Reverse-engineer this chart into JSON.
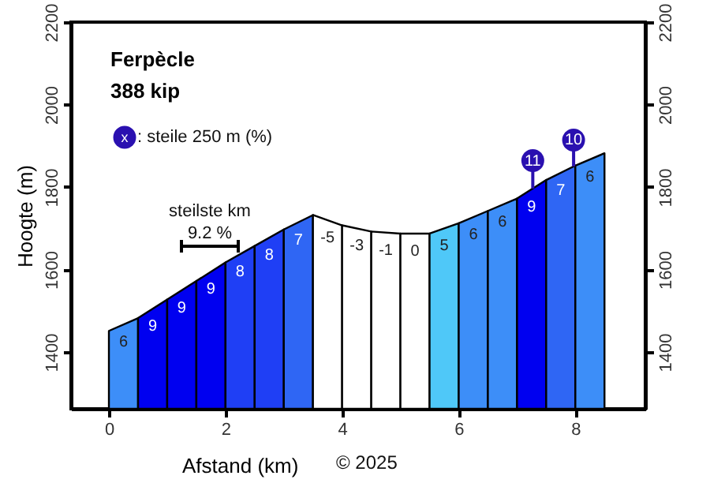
{
  "chart_data": {
    "type": "area",
    "title": "Ferpècle",
    "subtitle": "388 kip",
    "xlabel": "Afstand (km)",
    "ylabel": "Hoogte (m)",
    "series": [
      {
        "x": [
          0,
          0.5
        ],
        "values": [
          1451,
          1482
        ],
        "color": "#3d8ef8",
        "name": "6"
      },
      {
        "x": [
          0.5,
          1
        ],
        "values": [
          1482,
          1527
        ],
        "color": "#0000f0",
        "name": "9"
      },
      {
        "x": [
          1,
          1.5
        ],
        "values": [
          1527,
          1572
        ],
        "color": "#0000f0",
        "name": "9"
      },
      {
        "x": [
          1.5,
          2
        ],
        "values": [
          1572,
          1617
        ],
        "color": "#0000f0",
        "name": "9"
      },
      {
        "x": [
          2,
          2.5
        ],
        "values": [
          1617,
          1657
        ],
        "color": "#1f3ff5",
        "name": "8"
      },
      {
        "x": [
          2.5,
          3
        ],
        "values": [
          1657,
          1697
        ],
        "color": "#1f3ff5",
        "name": "8"
      },
      {
        "x": [
          3,
          3.5
        ],
        "values": [
          1697,
          1732
        ],
        "color": "#2f66f4",
        "name": "7"
      },
      {
        "x": [
          3.5,
          4
        ],
        "values": [
          1732,
          1707
        ],
        "color": "#ffffff",
        "name": "-5"
      },
      {
        "x": [
          4,
          4.5
        ],
        "values": [
          1707,
          1692
        ],
        "color": "#ffffff",
        "name": "-3"
      },
      {
        "x": [
          4.5,
          5
        ],
        "values": [
          1692,
          1687
        ],
        "color": "#ffffff",
        "name": "-1"
      },
      {
        "x": [
          5,
          5.5
        ],
        "values": [
          1687,
          1687
        ],
        "color": "#ffffff",
        "name": "0"
      },
      {
        "x": [
          5.5,
          6
        ],
        "values": [
          1687,
          1712
        ],
        "color": "#4fc8f8",
        "name": "5"
      },
      {
        "x": [
          6,
          6.5
        ],
        "values": [
          1712,
          1742
        ],
        "color": "#3d8ef8",
        "name": "6"
      },
      {
        "x": [
          6.5,
          7
        ],
        "values": [
          1742,
          1772
        ],
        "color": "#3d8ef8",
        "name": "6"
      },
      {
        "x": [
          7,
          7.5
        ],
        "values": [
          1772,
          1817
        ],
        "color": "#0000f0",
        "name": "9"
      },
      {
        "x": [
          7.5,
          8
        ],
        "values": [
          1817,
          1852
        ],
        "color": "#2f66f4",
        "name": "7"
      },
      {
        "x": [
          8,
          8.5
        ],
        "values": [
          1852,
          1882
        ],
        "color": "#3d8ef8",
        "name": "6"
      }
    ],
    "annotations": [
      {
        "text": "11",
        "x": 7.27,
        "y": 1864
      },
      {
        "text": "10",
        "x": 7.97,
        "y": 1914
      },
      "steilste km",
      "9.2 %",
      "x",
      ": steile 250 m (%)",
      "© 2025"
    ],
    "xlim": [
      -0.65,
      9.2
    ],
    "xticks": [
      0,
      2,
      4,
      6,
      8
    ],
    "ylim": [
      1262,
      2200
    ],
    "yticks": [
      1400,
      1600,
      1800,
      2000,
      2200
    ],
    "y2lim": [
      1262,
      2200
    ],
    "y2ticks": [
      1400,
      1600,
      1800,
      2000,
      2200
    ],
    "grid": false
  }
}
